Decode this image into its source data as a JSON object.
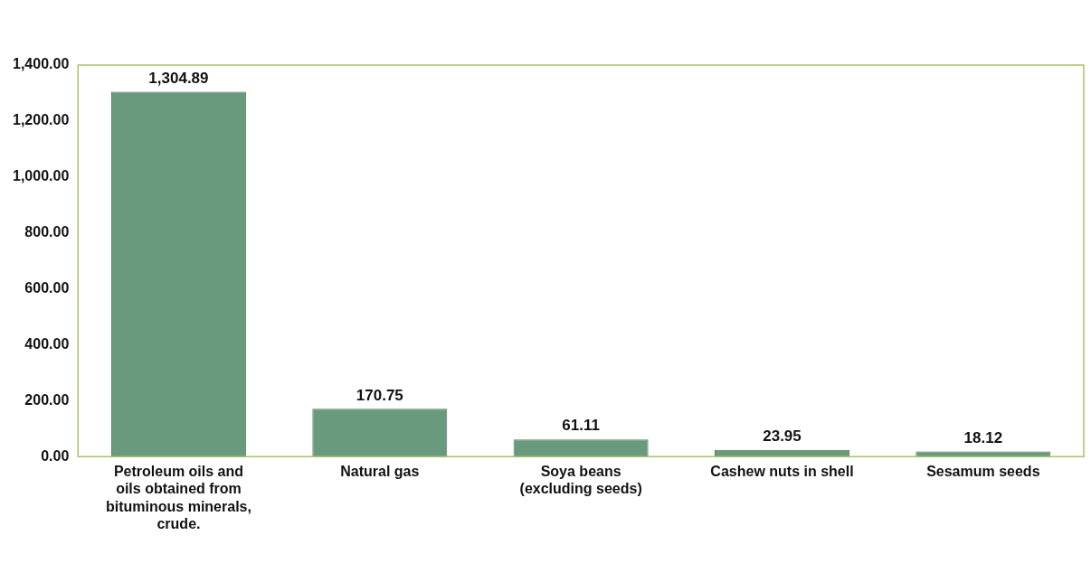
{
  "chart_data": {
    "type": "bar",
    "categories": [
      "Petroleum oils and oils obtained from bituminous minerals, crude.",
      "Natural gas",
      "Soya beans (excluding seeds)",
      "Cashew nuts in shell",
      "Sesamum seeds"
    ],
    "values": [
      1304.89,
      170.75,
      61.11,
      23.95,
      18.12
    ],
    "value_labels": [
      "1,304.89",
      "170.75",
      "61.11",
      "23.95",
      "18.12"
    ],
    "color": "#6a9a7e",
    "ylim": [
      0,
      1400
    ],
    "yticks": [
      {
        "value": 0,
        "label": "0.00"
      },
      {
        "value": 200,
        "label": "200.00"
      },
      {
        "value": 400,
        "label": "400.00"
      },
      {
        "value": 600,
        "label": "600.00"
      },
      {
        "value": 800,
        "label": "800.00"
      },
      {
        "value": 1000,
        "label": "1,000.00"
      },
      {
        "value": 1200,
        "label": "1,200.00"
      },
      {
        "value": 1400,
        "label": "1,400.00"
      }
    ],
    "grid": false,
    "legend": false
  }
}
